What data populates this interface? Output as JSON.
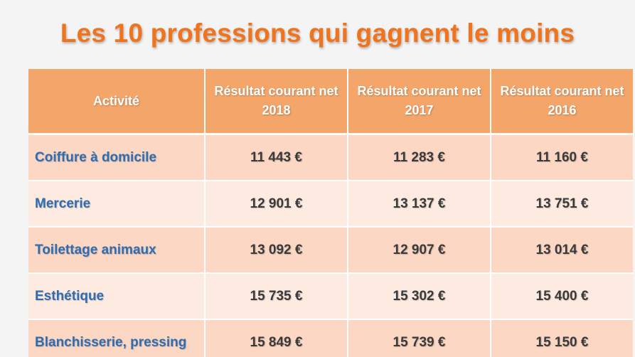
{
  "title": "Les 10 professions qui gagnent le moins",
  "table": {
    "headers": [
      "Activité",
      "Résultat courant net 2018",
      "Résultat courant net 2017",
      "Résultat courant net 2016"
    ],
    "rows": [
      {
        "activity": "Coiffure à domicile",
        "values": [
          "11 443 €",
          "11 283 €",
          "11 160 €"
        ]
      },
      {
        "activity": "Mercerie",
        "values": [
          "12 901 €",
          "13 137 €",
          "13 751 €"
        ]
      },
      {
        "activity": "Toilettage animaux",
        "values": [
          "13 092 €",
          "12 907 €",
          "13 014 €"
        ]
      },
      {
        "activity": "Esthétique",
        "values": [
          "15 735 €",
          "15 302 €",
          "15 400 €"
        ]
      },
      {
        "activity": "Blanchisserie, pressing",
        "values": [
          "15 849 €",
          "15 739 €",
          "15 150 €"
        ]
      }
    ]
  },
  "colors": {
    "title": "#f0731e",
    "header_bg": "#f4a66a",
    "row_odd": "#fbd7c4",
    "row_even": "#fdebe2",
    "activity_text": "#2f6cb0"
  }
}
